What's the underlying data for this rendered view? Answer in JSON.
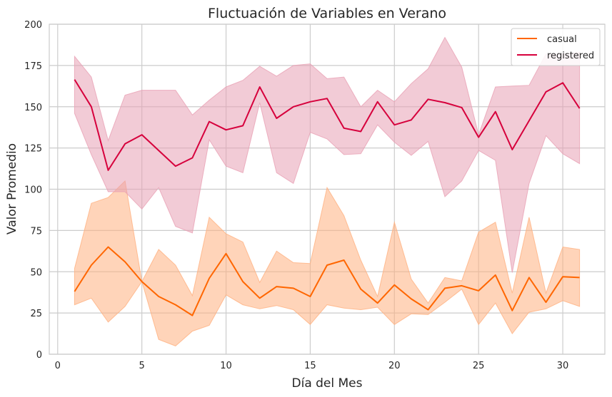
{
  "chart_data": {
    "type": "line",
    "title": "Fluctuación de Variables en Verano",
    "xlabel": "Día del Mes",
    "ylabel": "Valor Promedio",
    "xlim": [
      -0.5,
      32.5
    ],
    "ylim": [
      0,
      200
    ],
    "xticks": [
      0,
      5,
      10,
      15,
      20,
      25,
      30
    ],
    "yticks": [
      0,
      25,
      50,
      75,
      100,
      125,
      150,
      175,
      200
    ],
    "grid": true,
    "legend_position": "top-right",
    "x": [
      1,
      2,
      3,
      4,
      5,
      6,
      7,
      8,
      9,
      10,
      11,
      12,
      13,
      14,
      15,
      16,
      17,
      18,
      19,
      20,
      21,
      22,
      23,
      24,
      25,
      26,
      27,
      28,
      29,
      30,
      31
    ],
    "series": [
      {
        "name": "casual",
        "color": "#ff6600",
        "band_color": "#ffb080",
        "values": [
          38,
          54,
          65,
          56,
          44,
          35,
          30,
          23.5,
          46,
          61,
          44,
          34,
          41,
          40,
          35,
          54,
          57,
          39.5,
          31,
          42,
          33.5,
          27,
          40,
          41.5,
          38.5,
          48,
          26.5,
          46.5,
          31.5,
          47,
          46.5
        ],
        "ci_lower": [
          30,
          34,
          19.5,
          29,
          44,
          9,
          5,
          14,
          17.5,
          36,
          30,
          27.5,
          29.5,
          27,
          18,
          30,
          28,
          27,
          28.5,
          18,
          24.5,
          24,
          31.5,
          39.5,
          18,
          31,
          12.5,
          25.5,
          27.5,
          32.5,
          29
        ],
        "ci_upper": [
          52,
          91.5,
          95,
          105,
          44,
          63.5,
          54,
          35.5,
          83,
          73,
          68,
          43.5,
          62.5,
          55.5,
          55,
          101,
          84,
          57,
          35,
          80,
          45.5,
          31,
          46.5,
          44.5,
          74,
          80,
          37,
          83,
          37,
          65,
          63.5
        ]
      },
      {
        "name": "registered",
        "color": "#d6003c",
        "band_color": "#e8a0b4",
        "values": [
          166.5,
          150,
          111.5,
          127.5,
          133,
          123.5,
          114,
          119,
          141,
          136,
          138.5,
          162,
          143,
          150,
          153,
          155,
          137,
          135,
          153,
          139,
          142,
          154.5,
          152.5,
          149.5,
          131.5,
          147,
          124,
          141.5,
          159,
          164.5,
          149
        ],
        "ci_lower": [
          146,
          121,
          98.5,
          98.5,
          88,
          101,
          77.5,
          73.5,
          130,
          114,
          110,
          152.5,
          110,
          103.5,
          134.5,
          130.5,
          121,
          121.5,
          139,
          128.5,
          120.5,
          129,
          95.5,
          105,
          123.5,
          117.5,
          49.5,
          103.5,
          132.5,
          121.5,
          115.5
        ],
        "ci_upper": [
          180.5,
          168,
          129.5,
          157,
          160,
          160,
          160,
          145,
          154,
          162,
          166,
          174.5,
          168.5,
          175,
          176,
          167,
          168,
          150,
          160,
          153,
          164,
          173,
          192,
          174,
          133,
          162,
          162.5,
          163,
          182,
          182,
          183
        ]
      }
    ]
  }
}
